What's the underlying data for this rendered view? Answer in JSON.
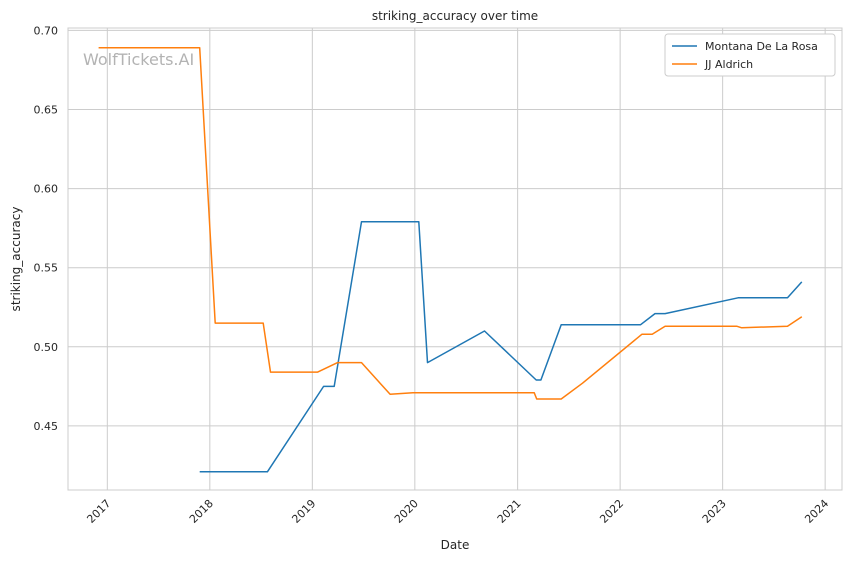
{
  "chart_data": {
    "type": "line",
    "title": "striking_accuracy over time",
    "xlabel": "Date",
    "ylabel": "striking_accuracy",
    "watermark": "WolfTickets.AI",
    "x_range": [
      "2016-08-14",
      "2024-03-01"
    ],
    "ylim": [
      0.4095,
      0.7015
    ],
    "x_ticks": [
      "2017",
      "2018",
      "2019",
      "2020",
      "2021",
      "2022",
      "2023",
      "2024"
    ],
    "y_ticks": [
      "0.45",
      "0.50",
      "0.55",
      "0.60",
      "0.65",
      "0.70"
    ],
    "grid": true,
    "legend_position": "upper right",
    "series": [
      {
        "name": "Montana De La Rosa",
        "color": "#1f77b4",
        "points": [
          [
            "2017-11-26",
            0.421
          ],
          [
            "2018-07-25",
            0.421
          ],
          [
            "2019-02-10",
            0.475
          ],
          [
            "2019-03-20",
            0.475
          ],
          [
            "2019-06-25",
            0.579
          ],
          [
            "2020-01-15",
            0.579
          ],
          [
            "2020-02-15",
            0.49
          ],
          [
            "2020-09-05",
            0.51
          ],
          [
            "2021-03-08",
            0.479
          ],
          [
            "2021-03-25",
            0.479
          ],
          [
            "2021-06-05",
            0.514
          ],
          [
            "2022-03-15",
            0.514
          ],
          [
            "2022-05-05",
            0.521
          ],
          [
            "2022-06-10",
            0.521
          ],
          [
            "2023-02-25",
            0.531
          ],
          [
            "2023-08-20",
            0.531
          ],
          [
            "2023-10-10",
            0.541
          ]
        ]
      },
      {
        "name": "JJ Aldrich",
        "color": "#ff7f0e",
        "points": [
          [
            "2016-12-01",
            0.689
          ],
          [
            "2017-11-26",
            0.689
          ],
          [
            "2018-01-20",
            0.515
          ],
          [
            "2018-07-10",
            0.515
          ],
          [
            "2018-08-05",
            0.484
          ],
          [
            "2019-01-20",
            0.484
          ],
          [
            "2019-04-01",
            0.49
          ],
          [
            "2019-06-25",
            0.49
          ],
          [
            "2019-10-05",
            0.47
          ],
          [
            "2019-12-25",
            0.471
          ],
          [
            "2021-03-01",
            0.471
          ],
          [
            "2021-03-10",
            0.467
          ],
          [
            "2021-06-05",
            0.467
          ],
          [
            "2021-08-20",
            0.477
          ],
          [
            "2022-03-20",
            0.508
          ],
          [
            "2022-04-25",
            0.508
          ],
          [
            "2022-06-10",
            0.513
          ],
          [
            "2023-02-20",
            0.513
          ],
          [
            "2023-03-10",
            0.512
          ],
          [
            "2023-08-20",
            0.513
          ],
          [
            "2023-10-10",
            0.519
          ]
        ]
      }
    ]
  }
}
